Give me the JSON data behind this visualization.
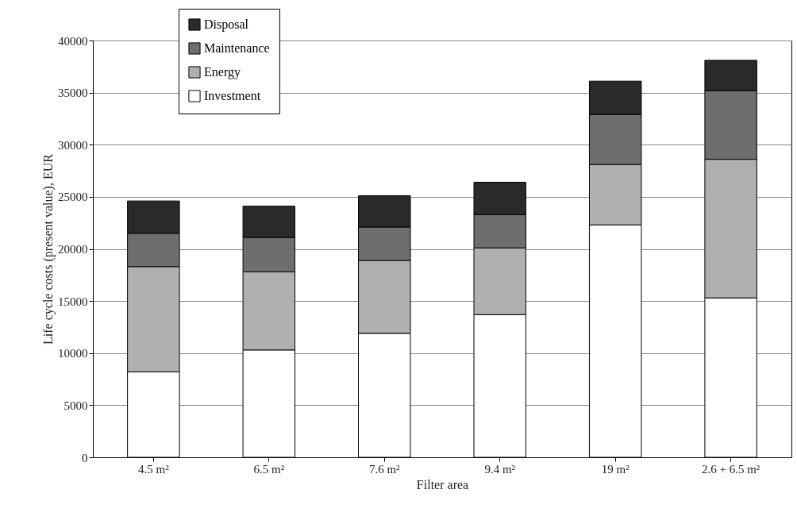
{
  "chart_data": {
    "type": "bar",
    "stacked": true,
    "xlabel": "Filter area",
    "ylabel": "Life cycle costs (present value), EUR",
    "categories": [
      "4.5 m²",
      "6.5 m²",
      "7.6 m²",
      "9.4 m²",
      "19 m²",
      "2.6 + 6.5 m²"
    ],
    "series": [
      {
        "name": "Investment",
        "color": "#ffffff",
        "values": [
          8200,
          10300,
          11900,
          13700,
          22300,
          15300
        ]
      },
      {
        "name": "Energy",
        "color": "#b0b0b0",
        "values": [
          10100,
          7500,
          7000,
          6400,
          5800,
          13300
        ]
      },
      {
        "name": "Maintenance",
        "color": "#6e6e6e",
        "values": [
          3200,
          3300,
          3200,
          3200,
          4800,
          6600
        ]
      },
      {
        "name": "Disposal",
        "color": "#2a2a2a",
        "values": [
          3100,
          3000,
          3000,
          3100,
          3200,
          2900
        ]
      }
    ],
    "ylim": [
      0,
      40000
    ],
    "yticks": [
      0,
      5000,
      10000,
      15000,
      20000,
      25000,
      30000,
      35000,
      40000
    ],
    "grid": "y",
    "legend": "top left"
  }
}
